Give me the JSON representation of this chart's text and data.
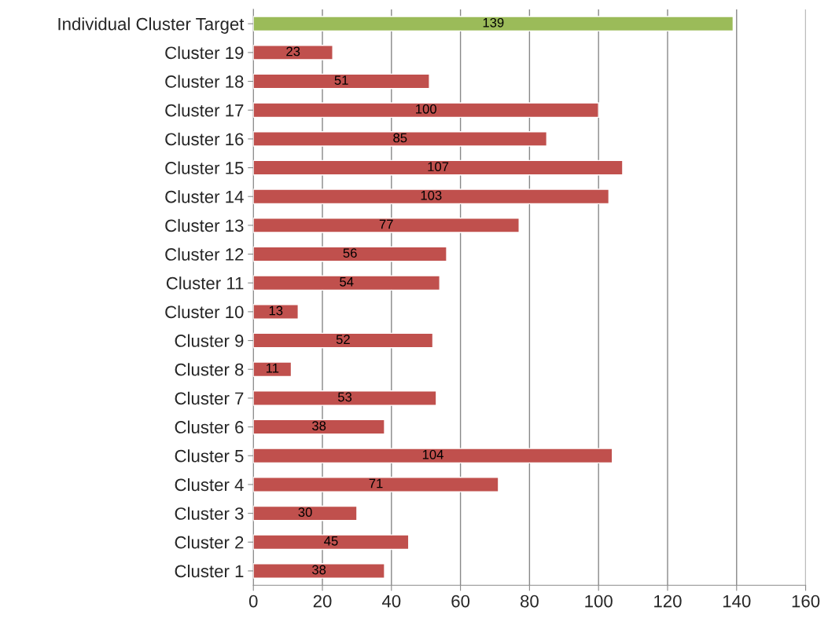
{
  "chart_data": {
    "type": "bar",
    "orientation": "horizontal",
    "categories": [
      "Individual Cluster Target",
      "Cluster 19",
      "Cluster 18",
      "Cluster 17",
      "Cluster 16",
      "Cluster 15",
      "Cluster 14",
      "Cluster 13",
      "Cluster 12",
      "Cluster 11",
      "Cluster 10",
      "Cluster 9",
      "Cluster 8",
      "Cluster 7",
      "Cluster 6",
      "Cluster 5",
      "Cluster 4",
      "Cluster 3",
      "Cluster 2",
      "Cluster 1"
    ],
    "values": [
      139,
      23,
      51,
      100,
      85,
      107,
      103,
      77,
      56,
      54,
      13,
      52,
      11,
      53,
      38,
      104,
      71,
      30,
      45,
      38
    ],
    "colors": [
      "#9bbb59",
      "#c0504d",
      "#c0504d",
      "#c0504d",
      "#c0504d",
      "#c0504d",
      "#c0504d",
      "#c0504d",
      "#c0504d",
      "#c0504d",
      "#c0504d",
      "#c0504d",
      "#c0504d",
      "#c0504d",
      "#c0504d",
      "#c0504d",
      "#c0504d",
      "#c0504d",
      "#c0504d",
      "#c0504d"
    ],
    "xlim": [
      0,
      160
    ],
    "xticks": [
      0,
      20,
      40,
      60,
      80,
      100,
      120,
      140,
      160
    ],
    "grid": "x",
    "data_labels": true,
    "legend": false
  }
}
